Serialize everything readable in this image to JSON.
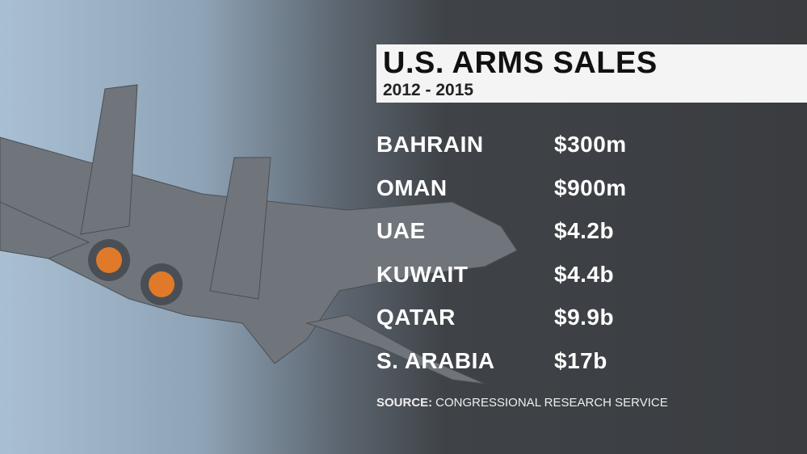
{
  "header": {
    "title": "U.S. ARMS SALES",
    "subtitle": "2012 - 2015"
  },
  "table": {
    "rows": [
      [
        "BAHRAIN",
        "$300m"
      ],
      [
        "OMAN",
        "$900m"
      ],
      [
        "UAE",
        "$4.2b"
      ],
      [
        "KUWAIT",
        "$4.4b"
      ],
      [
        "QATAR",
        "$9.9b"
      ],
      [
        "S. ARABIA",
        "$17b"
      ]
    ]
  },
  "source": {
    "label": "SOURCE:",
    "text": "CONGRESSIONAL RESEARCH SERVICE"
  }
}
